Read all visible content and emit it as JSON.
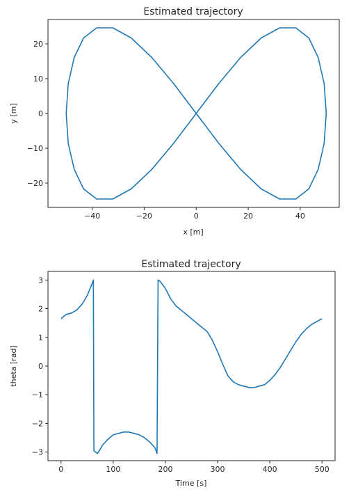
{
  "colors": {
    "line": "#1f77b4",
    "axis": "#262626",
    "background": "#ffffff"
  },
  "chart_data": [
    {
      "type": "line",
      "title": "Estimated trajectory",
      "xlabel": "x [m]",
      "ylabel": "y [m]",
      "xlim": [
        -57,
        55
      ],
      "ylim": [
        -27,
        27
      ],
      "xticks": [
        -40,
        -20,
        0,
        20,
        40
      ],
      "yticks": [
        -20,
        -10,
        0,
        10,
        20
      ],
      "xticklabels": [
        "−40",
        "−20",
        "0",
        "20",
        "40"
      ],
      "yticklabels": [
        "−20",
        "−10",
        "0",
        "10",
        "20"
      ],
      "grid": false,
      "series": [
        {
          "x": [
            50.0,
            49.2,
            46.9,
            43.3,
            38.3,
            32.1,
            25.0,
            17.1,
            8.7,
            0.0,
            -8.7,
            -17.1,
            -25.0,
            -32.1,
            -38.3,
            -43.3,
            -46.9,
            -49.2,
            -50.0,
            -49.2,
            -46.9,
            -43.3,
            -38.3,
            -32.1,
            -25.0,
            -17.1,
            -8.7,
            0.0,
            8.7,
            17.1,
            25.0,
            32.1,
            38.3,
            43.3,
            46.9,
            49.2,
            50.0
          ],
          "y": [
            0.0,
            8.6,
            16.1,
            21.7,
            24.6,
            24.6,
            21.7,
            16.1,
            8.6,
            0.0,
            -8.6,
            -16.1,
            -21.7,
            -24.6,
            -24.6,
            -21.7,
            -16.1,
            -8.6,
            0.0,
            8.6,
            16.1,
            21.7,
            24.6,
            24.6,
            21.7,
            16.1,
            8.6,
            0.0,
            -8.6,
            -16.1,
            -21.7,
            -24.6,
            -24.6,
            -21.7,
            -16.1,
            -8.6,
            0.0
          ]
        }
      ]
    },
    {
      "type": "line",
      "title": "Estimated trajectory",
      "xlabel": "Time [s]",
      "ylabel": "theta [rad]",
      "xlim": [
        -25,
        525
      ],
      "ylim": [
        -3.3,
        3.3
      ],
      "xticks": [
        0,
        100,
        200,
        300,
        400,
        500
      ],
      "yticks": [
        -3,
        -2,
        -1,
        0,
        1,
        2,
        3
      ],
      "xticklabels": [
        "0",
        "100",
        "200",
        "300",
        "400",
        "500"
      ],
      "yticklabels": [
        "−3",
        "−2",
        "−1",
        "0",
        "1",
        "2",
        "3"
      ],
      "grid": false,
      "series": [
        {
          "x": [
            0,
            10,
            20,
            30,
            40,
            50,
            58,
            62,
            63,
            70,
            80,
            90,
            100,
            110,
            120,
            130,
            140,
            150,
            160,
            170,
            180,
            184,
            186,
            190,
            200,
            210,
            220,
            230,
            240,
            250,
            260,
            270,
            280,
            290,
            300,
            310,
            320,
            330,
            340,
            350,
            360,
            370,
            380,
            390,
            400,
            410,
            420,
            430,
            440,
            450,
            460,
            470,
            480,
            490,
            500
          ],
          "y": [
            1.65,
            1.8,
            1.85,
            1.95,
            2.15,
            2.45,
            2.8,
            3.0,
            -2.95,
            -3.05,
            -2.75,
            -2.55,
            -2.4,
            -2.35,
            -2.3,
            -2.3,
            -2.35,
            -2.4,
            -2.5,
            -2.65,
            -2.85,
            -3.05,
            3.0,
            2.95,
            2.7,
            2.35,
            2.1,
            1.95,
            1.8,
            1.65,
            1.5,
            1.35,
            1.2,
            0.9,
            0.5,
            0.05,
            -0.35,
            -0.55,
            -0.65,
            -0.7,
            -0.75,
            -0.75,
            -0.7,
            -0.65,
            -0.5,
            -0.3,
            -0.05,
            0.25,
            0.55,
            0.85,
            1.1,
            1.3,
            1.45,
            1.55,
            1.65
          ]
        }
      ]
    }
  ]
}
